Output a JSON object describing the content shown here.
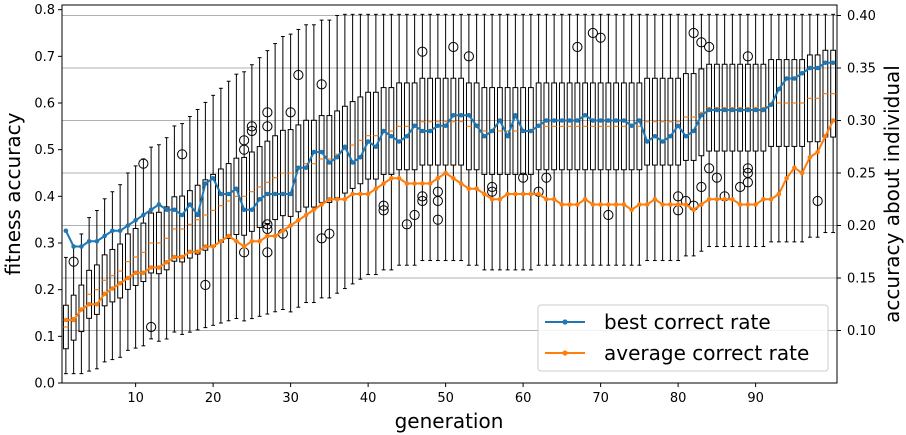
{
  "chart_data": {
    "type": "line",
    "xlabel": "generation",
    "ylabel_left": "fitness accuracy",
    "ylabel_right": "accuracy about individual",
    "xlim": [
      0.5,
      100.5
    ],
    "ylim_left": [
      0.0,
      0.81
    ],
    "ylim_right": [
      0.05,
      0.41
    ],
    "x_ticks": [
      10,
      20,
      30,
      40,
      50,
      60,
      70,
      80,
      90
    ],
    "y_ticks_left": [
      0.0,
      0.1,
      0.2,
      0.3,
      0.4,
      0.5,
      0.6,
      0.7,
      0.8
    ],
    "y_tick_labels_left": [
      "0.0",
      "0.1",
      "0.2",
      "0.3",
      "0.4",
      "0.5",
      "0.6",
      "0.7",
      "0.8"
    ],
    "y_ticks_right": [
      0.1,
      0.15,
      0.2,
      0.25,
      0.3,
      0.35,
      0.4
    ],
    "y_tick_labels_right": [
      "0.10",
      "0.15",
      "0.20",
      "0.25",
      "0.30",
      "0.35",
      "0.40"
    ],
    "grid": "horizontal (right axis)",
    "legend_position": "bottom-right",
    "colors": {
      "best": "#1f77b4",
      "average": "#ff7f0e",
      "box": "#000000",
      "grid": "#b0b0b0"
    },
    "series": [
      {
        "name": "best correct rate",
        "axis": "right",
        "color": "#1f77b4",
        "values": [
          0.195,
          0.18,
          0.18,
          0.185,
          0.185,
          0.19,
          0.195,
          0.195,
          0.2,
          0.205,
          0.21,
          0.215,
          0.22,
          0.215,
          0.215,
          0.21,
          0.22,
          0.21,
          0.24,
          0.245,
          0.23,
          0.23,
          0.235,
          0.215,
          0.215,
          0.225,
          0.23,
          0.23,
          0.23,
          0.23,
          0.255,
          0.255,
          0.27,
          0.27,
          0.26,
          0.265,
          0.275,
          0.26,
          0.265,
          0.28,
          0.275,
          0.29,
          0.285,
          0.28,
          0.285,
          0.295,
          0.29,
          0.29,
          0.295,
          0.295,
          0.305,
          0.305,
          0.305,
          0.295,
          0.285,
          0.29,
          0.3,
          0.285,
          0.305,
          0.29,
          0.29,
          0.295,
          0.3,
          0.3,
          0.3,
          0.3,
          0.3,
          0.305,
          0.3,
          0.3,
          0.3,
          0.3,
          0.3,
          0.295,
          0.3,
          0.28,
          0.285,
          0.28,
          0.285,
          0.295,
          0.285,
          0.29,
          0.305,
          0.31,
          0.31,
          0.31,
          0.31,
          0.31,
          0.31,
          0.31,
          0.31,
          0.315,
          0.33,
          0.34,
          0.34,
          0.345,
          0.35,
          0.35,
          0.355,
          0.355
        ]
      },
      {
        "name": "average correct rate",
        "axis": "right",
        "color": "#ff7f0e",
        "values": [
          0.11,
          0.11,
          0.12,
          0.125,
          0.125,
          0.135,
          0.14,
          0.145,
          0.15,
          0.155,
          0.155,
          0.16,
          0.16,
          0.165,
          0.17,
          0.17,
          0.175,
          0.175,
          0.18,
          0.18,
          0.185,
          0.19,
          0.185,
          0.18,
          0.185,
          0.185,
          0.19,
          0.19,
          0.195,
          0.2,
          0.205,
          0.21,
          0.215,
          0.22,
          0.225,
          0.225,
          0.225,
          0.23,
          0.23,
          0.23,
          0.235,
          0.24,
          0.245,
          0.245,
          0.24,
          0.24,
          0.24,
          0.24,
          0.245,
          0.25,
          0.245,
          0.24,
          0.235,
          0.235,
          0.23,
          0.225,
          0.225,
          0.23,
          0.23,
          0.23,
          0.23,
          0.23,
          0.225,
          0.225,
          0.22,
          0.22,
          0.22,
          0.225,
          0.22,
          0.22,
          0.22,
          0.22,
          0.22,
          0.215,
          0.22,
          0.22,
          0.225,
          0.22,
          0.22,
          0.22,
          0.22,
          0.215,
          0.22,
          0.225,
          0.225,
          0.225,
          0.225,
          0.22,
          0.22,
          0.22,
          0.225,
          0.225,
          0.23,
          0.245,
          0.255,
          0.25,
          0.265,
          0.27,
          0.285,
          0.3
        ]
      }
    ],
    "boxes_left_axis_median": [
      0.12,
      0.14,
      0.16,
      0.19,
      0.2,
      0.22,
      0.23,
      0.24,
      0.26,
      0.27,
      0.28,
      0.3,
      0.3,
      0.31,
      0.33,
      0.33,
      0.34,
      0.35,
      0.36,
      0.37,
      0.38,
      0.39,
      0.4,
      0.4,
      0.41,
      0.42,
      0.43,
      0.44,
      0.45,
      0.45,
      0.46,
      0.47,
      0.47,
      0.48,
      0.48,
      0.49,
      0.5,
      0.51,
      0.52,
      0.53,
      0.53,
      0.54,
      0.54,
      0.55,
      0.55,
      0.55,
      0.56,
      0.56,
      0.56,
      0.56,
      0.56,
      0.56,
      0.55,
      0.55,
      0.54,
      0.54,
      0.54,
      0.54,
      0.54,
      0.54,
      0.54,
      0.55,
      0.55,
      0.55,
      0.55,
      0.55,
      0.55,
      0.55,
      0.55,
      0.55,
      0.55,
      0.55,
      0.55,
      0.55,
      0.55,
      0.56,
      0.56,
      0.56,
      0.56,
      0.56,
      0.57,
      0.57,
      0.58,
      0.59,
      0.59,
      0.59,
      0.59,
      0.59,
      0.59,
      0.59,
      0.59,
      0.6,
      0.6,
      0.6,
      0.6,
      0.6,
      0.61,
      0.61,
      0.62,
      0.62
    ],
    "outliers_left_axis": [
      [
        2,
        0.26
      ],
      [
        11,
        0.47
      ],
      [
        12,
        0.12
      ],
      [
        16,
        0.49
      ],
      [
        19,
        0.21
      ],
      [
        24,
        0.52
      ],
      [
        24,
        0.5
      ],
      [
        24,
        0.28
      ],
      [
        25,
        0.55
      ],
      [
        25,
        0.54
      ],
      [
        27,
        0.58
      ],
      [
        27,
        0.55
      ],
      [
        27,
        0.34
      ],
      [
        27,
        0.33
      ],
      [
        27,
        0.28
      ],
      [
        29,
        0.32
      ],
      [
        30,
        0.58
      ],
      [
        31,
        0.66
      ],
      [
        34,
        0.64
      ],
      [
        34,
        0.31
      ],
      [
        35,
        0.32
      ],
      [
        42,
        0.38
      ],
      [
        42,
        0.37
      ],
      [
        45,
        0.34
      ],
      [
        46,
        0.36
      ],
      [
        47,
        0.71
      ],
      [
        47,
        0.4
      ],
      [
        47,
        0.39
      ],
      [
        49,
        0.41
      ],
      [
        49,
        0.39
      ],
      [
        49,
        0.35
      ],
      [
        51,
        0.72
      ],
      [
        53,
        0.7
      ],
      [
        56,
        0.42
      ],
      [
        56,
        0.41
      ],
      [
        60,
        0.44
      ],
      [
        62,
        0.41
      ],
      [
        63,
        0.44
      ],
      [
        67,
        0.72
      ],
      [
        69,
        0.75
      ],
      [
        70,
        0.74
      ],
      [
        71,
        0.36
      ],
      [
        80,
        0.4
      ],
      [
        80,
        0.37
      ],
      [
        81,
        0.39
      ],
      [
        82,
        0.75
      ],
      [
        82,
        0.38
      ],
      [
        83,
        0.73
      ],
      [
        83,
        0.42
      ],
      [
        84,
        0.72
      ],
      [
        84,
        0.46
      ],
      [
        85,
        0.44
      ],
      [
        86,
        0.4
      ],
      [
        88,
        0.42
      ],
      [
        89,
        0.7
      ],
      [
        89,
        0.46
      ],
      [
        89,
        0.45
      ],
      [
        89,
        0.43
      ],
      [
        98,
        0.39
      ]
    ]
  }
}
